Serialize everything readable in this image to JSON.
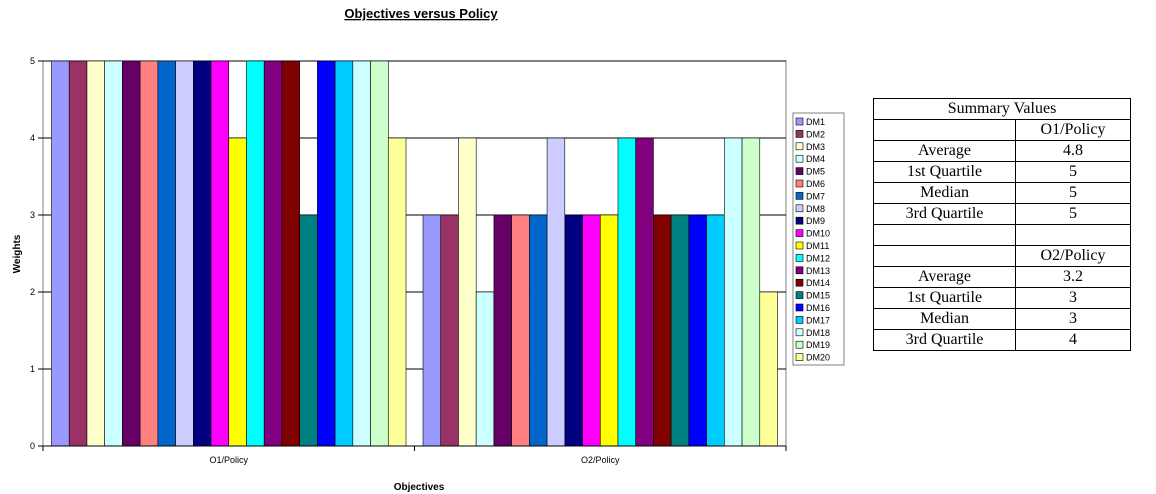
{
  "chart_data": {
    "type": "bar",
    "title": "Objectives versus Policy",
    "xlabel": "Objectives",
    "ylabel": "Weights",
    "ylim": [
      0,
      5
    ],
    "yticks": [
      "0",
      "1",
      "2",
      "3",
      "4",
      "5"
    ],
    "grid": true,
    "legend_position": "right",
    "categories": [
      "O1/Policy",
      "O2/Policy"
    ],
    "series": [
      {
        "name": "DM1",
        "color": "#9999FF",
        "values": [
          5,
          3
        ]
      },
      {
        "name": "DM2",
        "color": "#993366",
        "values": [
          5,
          3
        ]
      },
      {
        "name": "DM3",
        "color": "#FFFFCC",
        "values": [
          5,
          4
        ]
      },
      {
        "name": "DM4",
        "color": "#CCFFFF",
        "values": [
          5,
          2
        ]
      },
      {
        "name": "DM5",
        "color": "#660066",
        "values": [
          5,
          3
        ]
      },
      {
        "name": "DM6",
        "color": "#FF8080",
        "values": [
          5,
          3
        ]
      },
      {
        "name": "DM7",
        "color": "#0066CC",
        "values": [
          5,
          3
        ]
      },
      {
        "name": "DM8",
        "color": "#CCCCFF",
        "values": [
          5,
          4
        ]
      },
      {
        "name": "DM9",
        "color": "#000080",
        "values": [
          5,
          3
        ]
      },
      {
        "name": "DM10",
        "color": "#FF00FF",
        "values": [
          5,
          3
        ]
      },
      {
        "name": "DM11",
        "color": "#FFFF00",
        "values": [
          4,
          3
        ]
      },
      {
        "name": "DM12",
        "color": "#00FFFF",
        "values": [
          5,
          4
        ]
      },
      {
        "name": "DM13",
        "color": "#800080",
        "values": [
          5,
          4
        ]
      },
      {
        "name": "DM14",
        "color": "#800000",
        "values": [
          5,
          3
        ]
      },
      {
        "name": "DM15",
        "color": "#008080",
        "values": [
          3,
          3
        ]
      },
      {
        "name": "DM16",
        "color": "#0000FF",
        "values": [
          5,
          3
        ]
      },
      {
        "name": "DM17",
        "color": "#00CCFF",
        "values": [
          5,
          3
        ]
      },
      {
        "name": "DM18",
        "color": "#CCFFFF",
        "values": [
          5,
          4
        ]
      },
      {
        "name": "DM19",
        "color": "#CCFFCC",
        "values": [
          5,
          4
        ]
      },
      {
        "name": "DM20",
        "color": "#FFFF99",
        "values": [
          4,
          2
        ]
      }
    ]
  },
  "summary": {
    "header": "Summary Values",
    "blocks": [
      {
        "label": "O1/Policy",
        "rows": [
          {
            "name": "Average",
            "value": "4.8"
          },
          {
            "name": "1st Quartile",
            "value": "5"
          },
          {
            "name": "Median",
            "value": "5"
          },
          {
            "name": "3rd Quartile",
            "value": "5"
          }
        ]
      },
      {
        "label": "O2/Policy",
        "rows": [
          {
            "name": "Average",
            "value": "3.2"
          },
          {
            "name": "1st Quartile",
            "value": "3"
          },
          {
            "name": "Median",
            "value": "3"
          },
          {
            "name": "3rd Quartile",
            "value": "4"
          }
        ]
      }
    ]
  }
}
